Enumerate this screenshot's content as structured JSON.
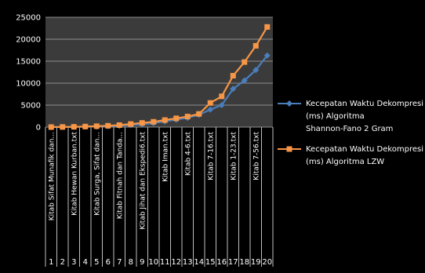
{
  "chart_data": {
    "type": "line",
    "x": [
      "1",
      "2",
      "3",
      "4",
      "5",
      "6",
      "7",
      "8",
      "9",
      "10",
      "11",
      "12",
      "13",
      "14",
      "15",
      "16",
      "17",
      "18",
      "19",
      "20"
    ],
    "category_labels": [
      "Kitab Sifat Munafik dan...",
      "Kitab Hewan Kurban.txt",
      "Kitab Surga, Sifat dan...",
      "Kitab Fitnah dan Tanda...",
      "Kitab Jihat dan Ekspedi6.txt",
      "Kitab Iman.txt",
      "Kitab 4-6.txt",
      "Kitab 7-16.txt",
      "Kitab 1-23.txt",
      "Kitab 7-56.txt"
    ],
    "series": [
      {
        "name": "Kecepatan Waktu Dekompresi (ms) Algoritma Shannon-Fano 2 Gram",
        "color": "#4a7ebb",
        "marker": "diamond",
        "values": [
          0,
          20,
          40,
          80,
          120,
          200,
          300,
          450,
          650,
          900,
          1300,
          1700,
          2100,
          2800,
          4000,
          5000,
          8700,
          10600,
          13000,
          16300
        ]
      },
      {
        "name": "Kecepatan Waktu Dekompresi (ms) Algoritma LZW",
        "color": "#f79646",
        "marker": "square",
        "values": [
          0,
          30,
          60,
          120,
          200,
          300,
          450,
          700,
          950,
          1200,
          1600,
          2000,
          2400,
          3000,
          5500,
          7000,
          11700,
          14800,
          18500,
          22800
        ]
      }
    ],
    "ylim": [
      0,
      25000
    ],
    "yticks": [
      0,
      5000,
      10000,
      15000,
      20000,
      25000
    ],
    "grid": true,
    "legend_position": "right"
  }
}
